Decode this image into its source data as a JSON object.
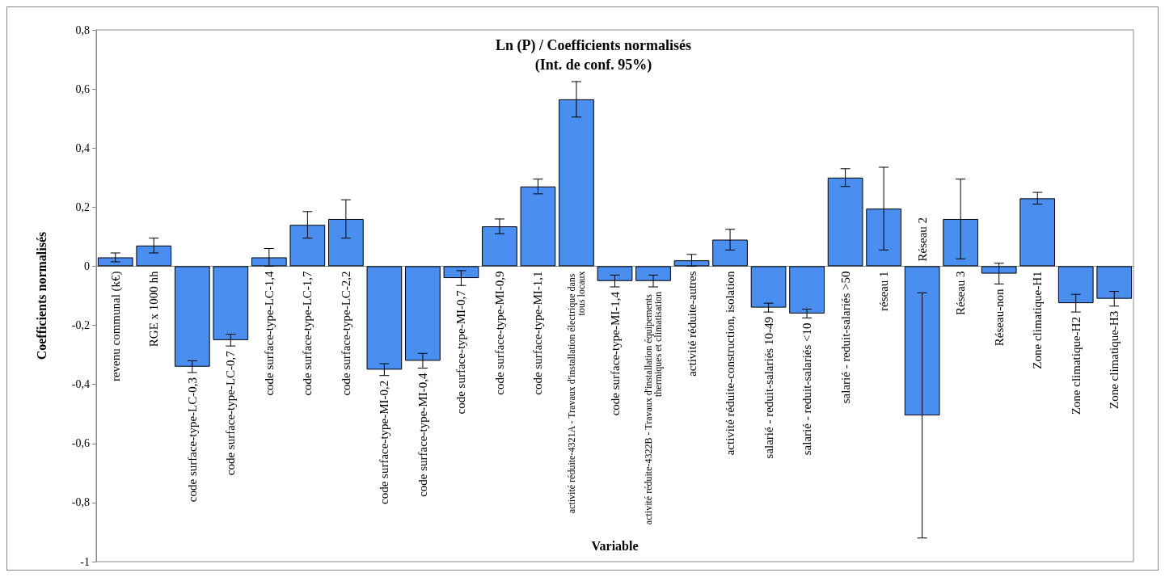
{
  "chart_data": {
    "type": "bar",
    "title": "Ln (P) / Coefficients normalisés\n(Int. de conf. 95%)",
    "xlabel": "Variable",
    "ylabel": "Coefficients normalisés",
    "categories": [
      "revenu communal (k€)",
      "RGE x 1000 hh",
      "code surface-type-LC-0,3",
      "code surface-type-LC-0,7",
      "code surface-type-LC-1,4",
      "code surface-type-LC-1,7",
      "code surface-type-LC-2,2",
      "code surface-type-MI-0,2",
      "code surface-type-MI-0,4",
      "code surface-type-MI-0,7",
      "code surface-type-MI-0,9",
      "code surface-type-MI-1,1",
      "activité réduite-4321A - Travaux d'installation électrique dans tous locaux",
      "code surface-type-MI-1,4",
      "activité réduite-4322B - Travaux d'installation équipements thermiques et climatisation",
      "activité réduite-autres",
      "activité réduite-construction, isolation",
      "salarié - reduit-salariés 10-49",
      "salarié - reduit-salariés <10",
      "salarié - reduit-salariés >50",
      "réseau 1",
      "Réseau 2",
      "Réseau 3",
      "Réseau-non",
      "Zone climatique-H1",
      "Zone climatique-H2",
      "Zone climatique-H3"
    ],
    "values": [
      0.03,
      0.07,
      -0.34,
      -0.25,
      0.03,
      0.14,
      0.16,
      -0.35,
      -0.32,
      -0.04,
      0.135,
      0.27,
      0.565,
      -0.05,
      -0.05,
      0.02,
      0.09,
      -0.14,
      -0.16,
      0.3,
      0.195,
      -0.505,
      0.16,
      -0.025,
      0.23,
      -0.125,
      -0.11
    ],
    "errors": [
      0.015,
      0.025,
      0.02,
      0.02,
      0.03,
      0.045,
      0.065,
      0.02,
      0.025,
      0.025,
      0.025,
      0.025,
      0.06,
      0.02,
      0.02,
      0.02,
      0.035,
      0.015,
      0.015,
      0.03,
      0.14,
      0.415,
      0.135,
      0.035,
      0.02,
      0.03,
      0.025
    ],
    "color": "#4a8ff0",
    "ylim": [
      -1,
      0.8
    ],
    "yticks": [
      {
        "value": -1,
        "label": "-1"
      },
      {
        "value": -0.8,
        "label": "-0,8"
      },
      {
        "value": -0.6,
        "label": "-0,6"
      },
      {
        "value": -0.4,
        "label": "-0,4"
      },
      {
        "value": -0.2,
        "label": "-0,2"
      },
      {
        "value": 0,
        "label": "0"
      },
      {
        "value": 0.2,
        "label": "0,2"
      },
      {
        "value": 0.4,
        "label": "0,4"
      },
      {
        "value": 0.6,
        "label": "0,6"
      },
      {
        "value": 0.8,
        "label": "0,8"
      }
    ],
    "grid": false
  }
}
